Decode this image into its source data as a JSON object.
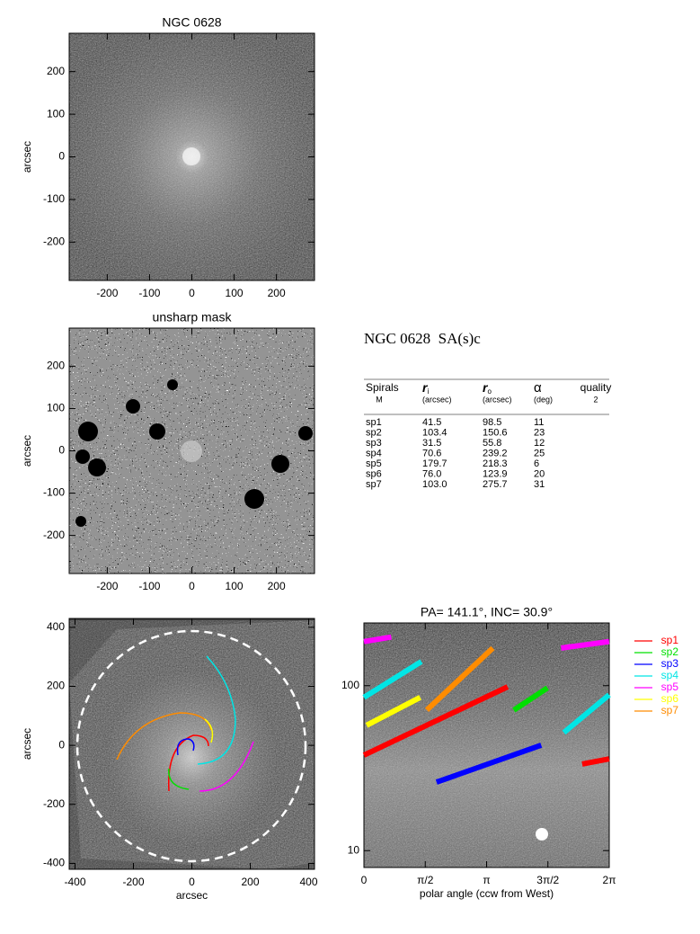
{
  "chart_data": [
    {
      "type": "image",
      "title": "NGC 0628",
      "ylabel": "arcsec",
      "xlim": [
        -290,
        290
      ],
      "ylim": [
        -290,
        290
      ],
      "xticks": [
        -200,
        -100,
        0,
        100,
        200
      ],
      "yticks": [
        -200,
        -100,
        0,
        100,
        200
      ]
    },
    {
      "type": "image",
      "title": "unsharp mask",
      "ylabel": "arcsec",
      "xlim": [
        -290,
        290
      ],
      "ylim": [
        -290,
        290
      ],
      "xticks": [
        -200,
        -100,
        0,
        100,
        200
      ],
      "yticks": [
        -200,
        -100,
        0,
        100,
        200
      ]
    },
    {
      "type": "image",
      "xlabel": "arcsec",
      "ylabel": "arcsec",
      "xlim": [
        -420,
        420
      ],
      "ylim": [
        -420,
        430
      ],
      "xticks": [
        -400,
        -200,
        0,
        200,
        400
      ],
      "yticks": [
        -400,
        -200,
        0,
        200,
        400
      ]
    },
    {
      "type": "line",
      "title": "PA= 141.1°, INC=  30.9°",
      "xlabel": "polar angle (ccw from West)",
      "xlim": [
        0,
        6.2832
      ],
      "ylim": [
        7.9,
        240
      ],
      "log_y": true,
      "xticks": [
        0,
        {
          "value": 1.5708,
          "label": "π/2"
        },
        {
          "value": 3.1416,
          "label": "π"
        },
        {
          "value": 4.7124,
          "label": "3π/2"
        },
        {
          "value": 6.2832,
          "label": "2π"
        }
      ],
      "yticks": [
        10,
        100
      ],
      "series": [
        {
          "name": "sp1",
          "color": "#ff0000",
          "x": [
            5.59,
            6.28,
            null,
            0,
            3.68
          ],
          "values": [
            33.5,
            36,
            null,
            37.9,
            98.5
          ]
        },
        {
          "name": "sp2",
          "color": "#00e000",
          "x": [
            3.84,
            4.7
          ],
          "values": [
            71,
            97
          ]
        },
        {
          "name": "sp3",
          "color": "#0000ff",
          "x": [
            1.86,
            4.54
          ],
          "values": [
            26,
            43.6
          ]
        },
        {
          "name": "sp4",
          "color": "#00e5e5",
          "x": [
            0,
            1.47,
            null,
            5.12,
            6.28
          ],
          "values": [
            84.9,
            140,
            null,
            52,
            88
          ]
        },
        {
          "name": "sp5",
          "color": "#ff00ff",
          "x": [
            0,
            0.7,
            null,
            5.05,
            6.28
          ],
          "values": [
            185,
            197,
            null,
            169,
            185
          ]
        },
        {
          "name": "sp6",
          "color": "#ffff00",
          "x": [
            0.07,
            1.44
          ],
          "values": [
            57.5,
            84.9
          ]
        },
        {
          "name": "sp7",
          "color": "#ff8c00",
          "x": [
            1.61,
            3.3
          ],
          "values": [
            71.2,
            169
          ]
        }
      ]
    }
  ],
  "table": {
    "title": "NGC 0628  SA(s)c",
    "columns": [
      {
        "name": "Spirals",
        "unit": "M"
      },
      {
        "name": "r",
        "subscript": "i",
        "unit": "(arcsec)"
      },
      {
        "name": "r",
        "subscript": "o",
        "unit": "(arcsec)"
      },
      {
        "name": "α",
        "unit": "(deg)"
      },
      {
        "name": "quality",
        "unit": "2"
      }
    ],
    "rows": [
      [
        "sp1",
        "41.5",
        "98.5",
        "11"
      ],
      [
        "sp2",
        "103.4",
        "150.6",
        "23"
      ],
      [
        "sp3",
        "31.5",
        "55.8",
        "12"
      ],
      [
        "sp4",
        "70.6",
        "239.2",
        "25"
      ],
      [
        "sp5",
        "179.7",
        "218.3",
        "6"
      ],
      [
        "sp6",
        "76.0",
        "123.9",
        "20"
      ],
      [
        "sp7",
        "103.0",
        "275.7",
        "31"
      ]
    ]
  }
}
